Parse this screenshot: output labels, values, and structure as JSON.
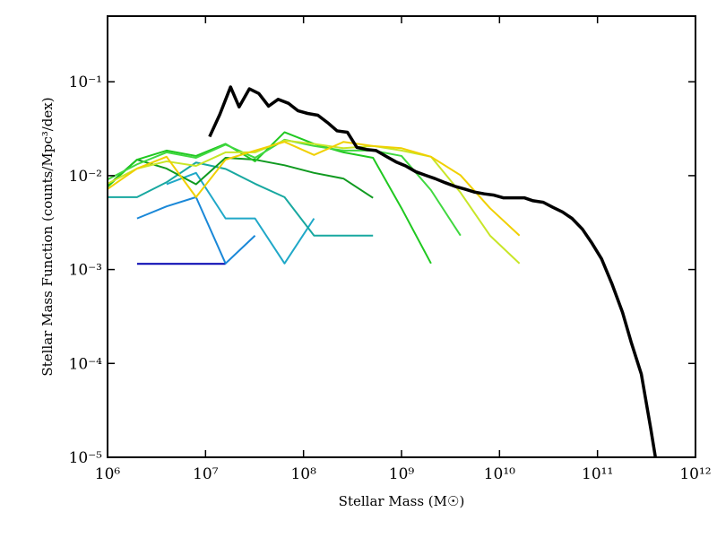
{
  "chart_data": {
    "type": "line",
    "xlabel": "Stellar Mass (M☉)",
    "ylabel": "Stellar Mass Function (counts/Mpc³/dex)",
    "xscale": "log",
    "yscale": "log",
    "xlim": [
      1000000,
      1000000000000
    ],
    "ylim": [
      1e-05,
      0.5
    ],
    "xticks": [
      {
        "value": 1000000,
        "label": "10⁶"
      },
      {
        "value": 10000000,
        "label": "10⁷"
      },
      {
        "value": 100000000,
        "label": "10⁸"
      },
      {
        "value": 1000000000,
        "label": "10⁹"
      },
      {
        "value": 10000000000,
        "label": "10¹⁰"
      },
      {
        "value": 100000000000,
        "label": "10¹¹"
      },
      {
        "value": 1000000000000,
        "label": "10¹²"
      }
    ],
    "yticks": [
      {
        "value": 1e-05,
        "label": "10⁻⁵"
      },
      {
        "value": 0.0001,
        "label": "10⁻⁴"
      },
      {
        "value": 0.001,
        "label": "10⁻³"
      },
      {
        "value": 0.01,
        "label": "10⁻²"
      },
      {
        "value": 0.1,
        "label": "10⁻¹"
      }
    ],
    "series": [
      {
        "color": "#0000b0",
        "width": 2,
        "x": [
          2000000,
          4000000,
          8000000,
          16000000
        ],
        "values": [
          0.00115,
          0.00115,
          0.00115,
          0.00115
        ]
      },
      {
        "color": "#1a88d8",
        "width": 2,
        "x": [
          2000000,
          4000000,
          8000000,
          16000000,
          32000000
        ],
        "values": [
          0.0035,
          0.0047,
          0.0059,
          0.00116,
          0.0023
        ]
      },
      {
        "color": "#20a8c8",
        "width": 2,
        "x": [
          4000000,
          8000000,
          16000000,
          32000000,
          64000000,
          128000000
        ],
        "values": [
          0.0081,
          0.0107,
          0.0035,
          0.0035,
          0.00116,
          0.0035
        ]
      },
      {
        "color": "#18a8a0",
        "width": 2,
        "x": [
          1000000,
          2000000,
          4000000,
          8000000,
          16000000,
          32000000,
          64000000,
          128000000,
          256000000,
          512000000
        ],
        "values": [
          0.0059,
          0.0059,
          0.0085,
          0.0138,
          0.0118,
          0.0082,
          0.0059,
          0.0023,
          0.0023,
          0.0023
        ]
      },
      {
        "color": "#109a20",
        "width": 2,
        "x": [
          1000000,
          2000000,
          4000000,
          8000000,
          16000000,
          32000000,
          64000000,
          128000000,
          256000000,
          512000000
        ],
        "values": [
          0.0078,
          0.0148,
          0.0119,
          0.0081,
          0.0155,
          0.0148,
          0.0129,
          0.0107,
          0.0093,
          0.0058
        ]
      },
      {
        "color": "#20c820",
        "width": 2,
        "x": [
          1000000,
          2000000,
          4000000,
          8000000,
          16000000,
          32000000,
          64000000,
          128000000,
          256000000,
          512000000,
          1000000000,
          2000000000
        ],
        "values": [
          0.0076,
          0.0148,
          0.0185,
          0.0162,
          0.0218,
          0.0142,
          0.029,
          0.0218,
          0.0177,
          0.0155,
          0.0045,
          0.00116
        ]
      },
      {
        "color": "#40d840",
        "width": 2,
        "x": [
          1000000,
          2000000,
          4000000,
          8000000,
          16000000,
          32000000,
          64000000,
          128000000,
          256000000,
          512000000,
          1000000000,
          2000000000,
          4000000000
        ],
        "values": [
          0.0091,
          0.0132,
          0.0177,
          0.0155,
          0.0214,
          0.0155,
          0.0241,
          0.0207,
          0.0185,
          0.0185,
          0.0162,
          0.007,
          0.0023
        ]
      },
      {
        "color": "#c8e628",
        "width": 2,
        "x": [
          1000000,
          2000000,
          4000000,
          8000000,
          16000000,
          32000000,
          64000000,
          128000000,
          256000000,
          512000000,
          1000000000,
          2000000000,
          4000000000,
          8000000000,
          16000000000
        ],
        "values": [
          0.0082,
          0.0119,
          0.0142,
          0.0127,
          0.0177,
          0.0177,
          0.0237,
          0.0218,
          0.0196,
          0.0207,
          0.0185,
          0.0159,
          0.0066,
          0.0023,
          0.00116
        ]
      },
      {
        "color": "#f0d000",
        "width": 2,
        "x": [
          1000000,
          2000000,
          4000000,
          8000000,
          16000000,
          32000000,
          64000000,
          128000000,
          256000000,
          512000000,
          1000000000,
          2000000000,
          4000000000,
          8000000000,
          16000000000
        ],
        "values": [
          0.0072,
          0.0119,
          0.0159,
          0.0059,
          0.0148,
          0.0185,
          0.0229,
          0.0166,
          0.0229,
          0.0207,
          0.0196,
          0.0159,
          0.0101,
          0.0045,
          0.0023
        ]
      },
      {
        "color": "#000000",
        "width": 3.5,
        "x": [
          11000000,
          14000000,
          18000000,
          22000000,
          28000000,
          35000000,
          44000000,
          55000000,
          70000000,
          88000000,
          110000000,
          140000000,
          180000000,
          220000000,
          280000000,
          350000000,
          440000000,
          550000000,
          700000000,
          880000000,
          1100000000,
          1400000000,
          1800000000,
          2200000000,
          2800000000,
          3500000000,
          4400000000,
          5500000000,
          7000000000,
          8800000000,
          11000000000,
          14000000000,
          18000000000,
          22000000000,
          28000000000,
          35000000000,
          44000000000,
          55000000000,
          70000000000,
          88000000000,
          110000000000,
          140000000000,
          180000000000,
          220000000000,
          280000000000,
          350000000000,
          390000000000
        ],
        "values": [
          0.026,
          0.045,
          0.088,
          0.054,
          0.084,
          0.075,
          0.055,
          0.065,
          0.059,
          0.049,
          0.046,
          0.044,
          0.036,
          0.03,
          0.029,
          0.02,
          0.019,
          0.0185,
          0.016,
          0.014,
          0.0127,
          0.011,
          0.01,
          0.0093,
          0.0084,
          0.0077,
          0.0072,
          0.0067,
          0.0064,
          0.0062,
          0.0058,
          0.0058,
          0.0058,
          0.0054,
          0.0052,
          0.0046,
          0.0041,
          0.0035,
          0.0027,
          0.0019,
          0.0013,
          0.00071,
          0.00035,
          0.00017,
          7.7e-05,
          2e-05,
          1e-05
        ]
      }
    ]
  }
}
